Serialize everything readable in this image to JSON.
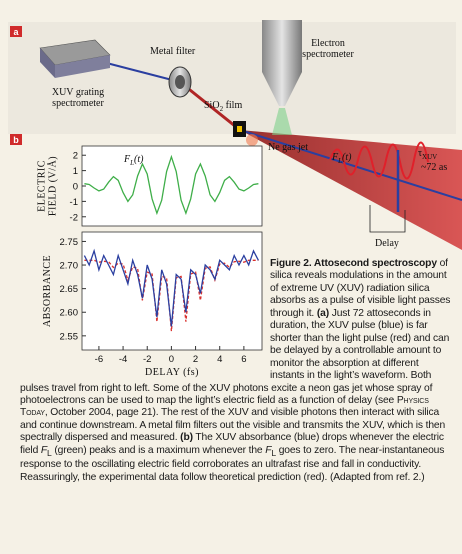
{
  "panel_a": {
    "label": "a",
    "metal_filter": "Metal filter",
    "electron_spectrometer": [
      "Electron",
      "spectrometer"
    ],
    "grating_spectrometer": [
      "XUV grating",
      "spectrometer"
    ],
    "film": [
      "SiO",
      "2",
      " film"
    ],
    "gas_jet": "Ne gas jet",
    "field": [
      "F",
      "L",
      "(t)"
    ],
    "pulse_duration": [
      "τ",
      "XUV",
      "~72 as"
    ],
    "delay": "Delay"
  },
  "panel_b": {
    "label": "b"
  },
  "chart_data": [
    {
      "type": "line",
      "y_label": [
        "ELECTRIC",
        "FIELD (V/Å)"
      ],
      "annotation": [
        "F",
        "L",
        "(t)"
      ],
      "x": [
        -7.2,
        -6.8,
        -6.4,
        -6.0,
        -5.6,
        -5.2,
        -4.8,
        -4.4,
        -4.0,
        -3.6,
        -3.2,
        -2.8,
        -2.4,
        -2.0,
        -1.6,
        -1.2,
        -0.8,
        -0.4,
        0,
        0.4,
        0.8,
        1.2,
        1.6,
        2.0,
        2.4,
        2.8,
        3.2,
        3.6,
        4.0,
        4.4,
        4.8,
        5.2,
        5.6,
        6.0,
        6.4,
        6.8,
        7.2
      ],
      "series": [
        {
          "color": "#3fae49",
          "values": [
            0.15,
            0.1,
            -0.13,
            -0.32,
            -0.2,
            0.25,
            0.61,
            0.37,
            -0.43,
            -1.0,
            -0.58,
            0.65,
            1.43,
            0.78,
            -0.84,
            -1.77,
            -0.92,
            0.94,
            1.9,
            0.94,
            -0.92,
            -1.77,
            -0.84,
            0.78,
            1.43,
            0.65,
            -0.58,
            -1.0,
            -0.43,
            0.37,
            0.61,
            0.25,
            -0.2,
            -0.32,
            -0.13,
            0.1,
            0.15
          ]
        }
      ],
      "xlim": [
        -7.4,
        7.5
      ],
      "ylim": [
        -2.6,
        2.6
      ],
      "yticks": [
        2,
        1,
        0,
        -1,
        -2
      ]
    },
    {
      "type": "line",
      "y_label": [
        "ABSORBANCE"
      ],
      "x_label": "DELAY (fs)",
      "x": [
        -7.2,
        -6.8,
        -6.4,
        -6.0,
        -5.6,
        -5.2,
        -4.8,
        -4.4,
        -4.0,
        -3.6,
        -3.2,
        -2.8,
        -2.4,
        -2.0,
        -1.6,
        -1.2,
        -0.8,
        -0.4,
        0,
        0.4,
        0.8,
        1.2,
        1.6,
        2.0,
        2.4,
        2.8,
        3.2,
        3.6,
        4.0,
        4.4,
        4.8,
        5.2,
        5.6,
        6.0,
        6.4,
        6.8,
        7.2
      ],
      "series": [
        {
          "color": "#d9302c",
          "dashed": true,
          "values": [
            2.71,
            2.71,
            2.71,
            2.706,
            2.708,
            2.707,
            2.695,
            2.704,
            2.702,
            2.668,
            2.696,
            2.693,
            2.625,
            2.685,
            2.681,
            2.58,
            2.676,
            2.673,
            2.56,
            2.673,
            2.676,
            2.58,
            2.681,
            2.685,
            2.625,
            2.693,
            2.696,
            2.668,
            2.702,
            2.704,
            2.695,
            2.707,
            2.708,
            2.706,
            2.71,
            2.71,
            2.71
          ]
        },
        {
          "color": "#2b3fa0",
          "values": [
            2.72,
            2.7,
            2.73,
            2.69,
            2.72,
            2.7,
            2.68,
            2.72,
            2.69,
            2.66,
            2.71,
            2.68,
            2.63,
            2.7,
            2.67,
            2.59,
            2.69,
            2.66,
            2.57,
            2.68,
            2.67,
            2.6,
            2.69,
            2.68,
            2.64,
            2.7,
            2.69,
            2.67,
            2.71,
            2.7,
            2.69,
            2.72,
            2.7,
            2.72,
            2.7,
            2.73,
            2.71
          ]
        }
      ],
      "xlim": [
        -7.4,
        7.5
      ],
      "ylim": [
        2.52,
        2.77
      ],
      "xticks": [
        -6,
        -4,
        -2,
        0,
        2,
        4,
        6
      ],
      "yticks": [
        2.75,
        {
          "value": 2.7,
          "label": "2.70"
        },
        2.65,
        {
          "value": 2.6,
          "label": "2.60"
        },
        2.55
      ]
    }
  ],
  "caption": {
    "title": "Figure 2. Attosecond spectroscopy",
    "body": [
      " of silica reveals modulations in the amount of extreme UV (XUV) radiation silica absorbs as a pulse of visible light passes through it. ",
      "(a)",
      " Just 72 attoseconds in duration, the XUV pulse (blue) is far shorter than the light pulse (red) and can be delayed by a controllable amount to monitor the absorption at different instants in the light’s waveform. Both pulses travel from right to left. Some of the XUV photons excite a neon gas jet whose spray of photoelectrons can be used to map the light’s electric field as a function of delay (see ",
      "Physics Today",
      ", October 2004, page 21). The rest of the XUV and visible photons then interact with silica and continue downstream. A metal film filters out the visible and transmits the XUV, which is then spectrally dispersed and measured. ",
      "(b)",
      " The XUV absorbance (blue) drops whenever the electric field ",
      "F",
      "L",
      " (green) peaks and is a maximum whenever the ",
      "F",
      "L",
      " goes to zero. The near-instantaneous response to the oscillating electric field corroborates an ultrafast rise and fall in conductivity. Reassuringly, the experimental data follow theoretical prediction (red). (Adapted from ref. 2.)"
    ]
  }
}
